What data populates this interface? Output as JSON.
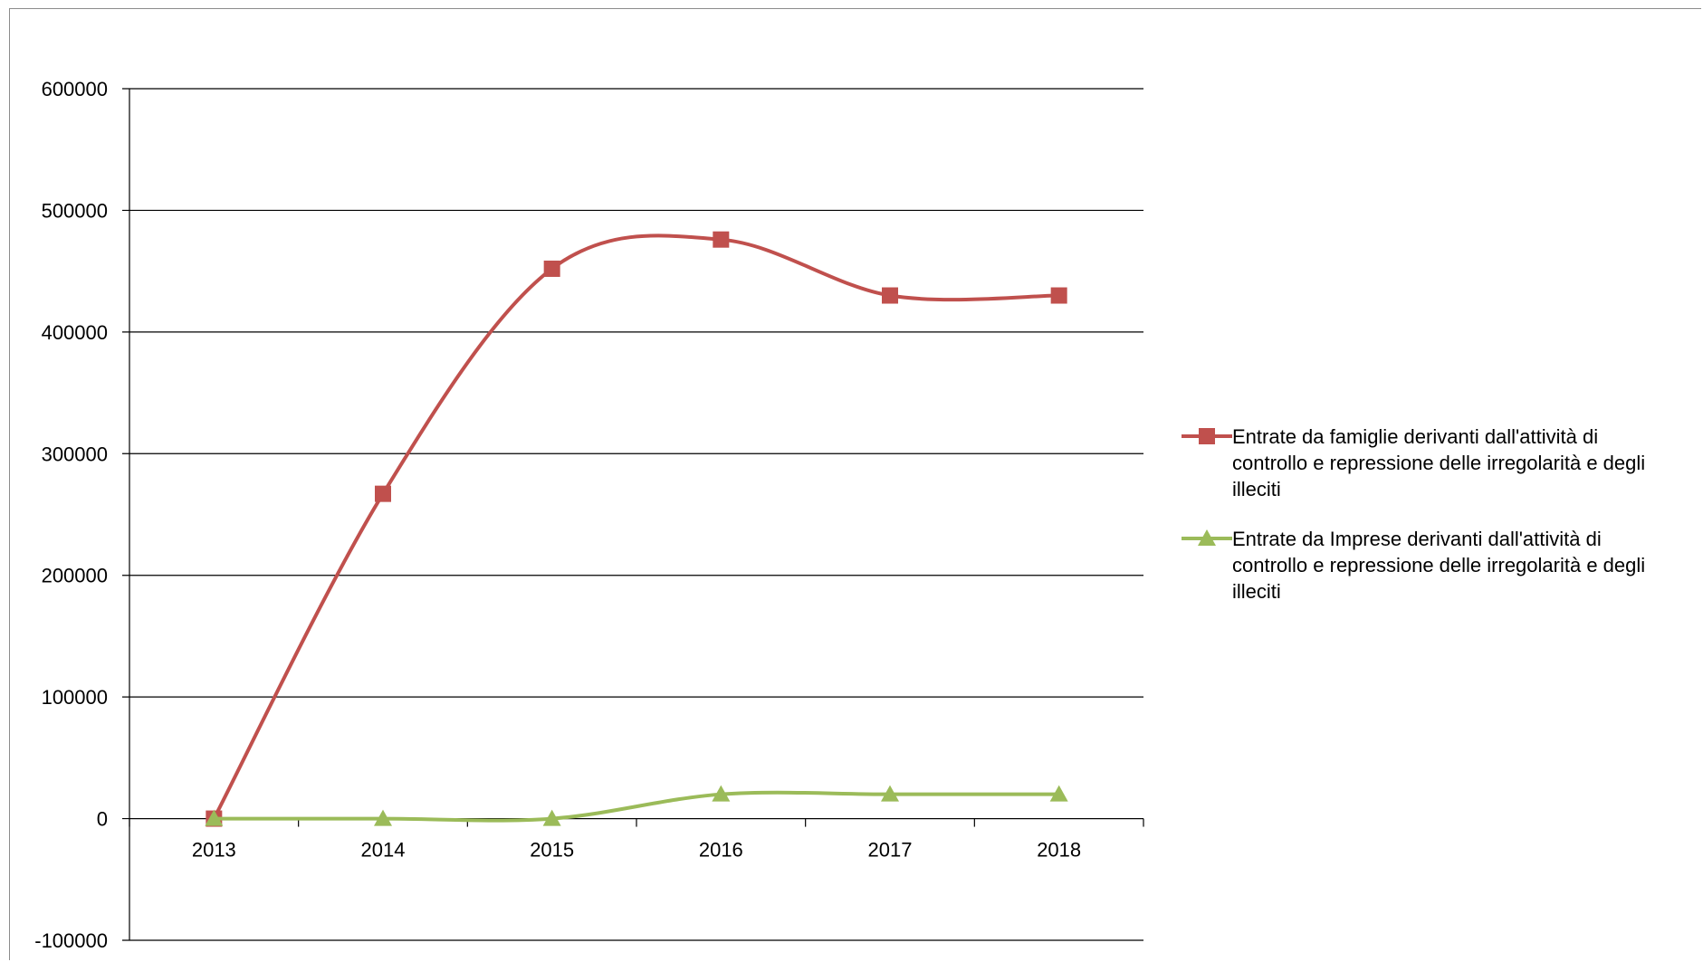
{
  "chart_data": {
    "type": "line",
    "title": "",
    "xlabel": "",
    "ylabel": "",
    "categories": [
      "2013",
      "2014",
      "2015",
      "2016",
      "2017",
      "2018"
    ],
    "ylim": [
      -100000,
      600000
    ],
    "yticks": [
      600000,
      500000,
      400000,
      300000,
      200000,
      100000,
      0,
      -100000
    ],
    "grid": true,
    "smooth": true,
    "legend_position": "right",
    "series": [
      {
        "name": "Entrate da famiglie derivanti dall'attività di controllo e repressione delle irregolarità e degli illeciti",
        "legend_lines": [
          "Entrate da famiglie derivanti dall'attività di",
          "controllo e repressione delle irregolarità e degli",
          "illeciti"
        ],
        "values": [
          0,
          267000,
          452000,
          476000,
          430000,
          430000
        ],
        "color": "#c0504d",
        "marker": "square"
      },
      {
        "name": "Entrate da Imprese derivanti dall'attività di controllo e repressione delle irregolarità e degli illeciti",
        "legend_lines": [
          "Entrate da Imprese derivanti dall'attività di",
          "controllo e repressione delle irregolarità e degli",
          "illeciti"
        ],
        "values": [
          0,
          0,
          0,
          20000,
          20000,
          20000
        ],
        "color": "#9bbb59",
        "marker": "triangle"
      }
    ]
  }
}
